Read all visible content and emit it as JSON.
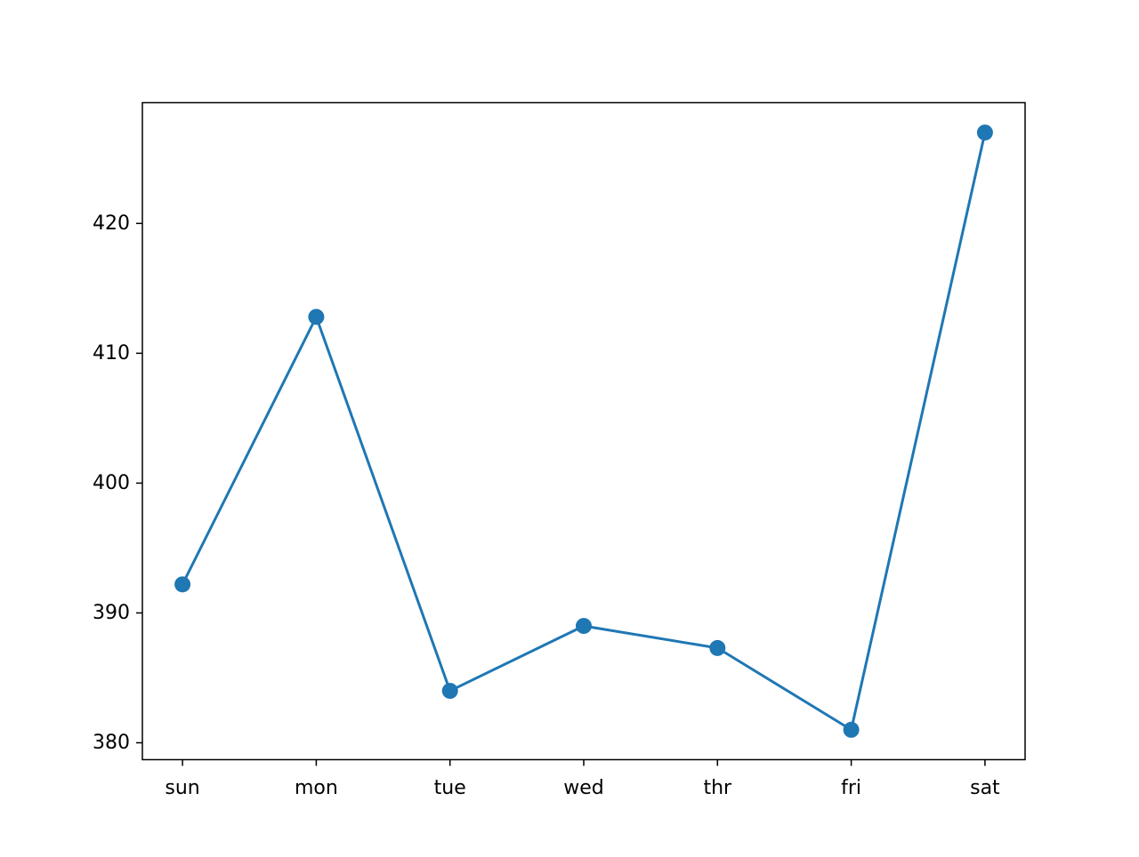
{
  "chart_data": {
    "type": "line",
    "title": "",
    "xlabel": "",
    "ylabel": "",
    "categories": [
      "sun",
      "mon",
      "tue",
      "wed",
      "thr",
      "fri",
      "sat"
    ],
    "series": [
      {
        "values": [
          392.2,
          412.8,
          384.0,
          389.0,
          387.3,
          381.0,
          427.0
        ],
        "color": "#1f77b4",
        "marker": "circle"
      }
    ],
    "ylim": [
      378.7,
      429.3
    ],
    "yticks": [
      380,
      390,
      400,
      410,
      420
    ],
    "grid": false,
    "legend": "none"
  }
}
